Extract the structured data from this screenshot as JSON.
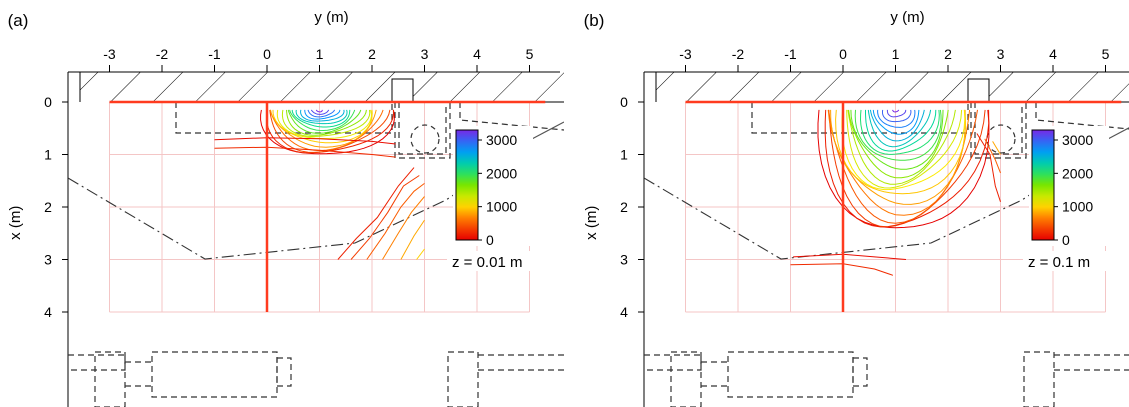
{
  "chart_data": [
    {
      "type": "contour",
      "panel_label": "(a)",
      "xlabel": "y (m)",
      "ylabel": "x (m)",
      "x_ticks": [
        "-3",
        "-2",
        "-1",
        "0",
        "1",
        "2",
        "3",
        "4",
        "5"
      ],
      "x_tick_values": [
        -3,
        -2,
        -1,
        0,
        1,
        2,
        3,
        4,
        5
      ],
      "y_ticks": [
        "0",
        "1",
        "2",
        "3",
        "4"
      ],
      "y_tick_values": [
        0,
        1,
        2,
        3,
        4
      ],
      "xlim": [
        -3.75,
        5.3
      ],
      "ylim": [
        0,
        5.8
      ],
      "grid": true,
      "annotation": "z = 0.01 m",
      "colorbar": {
        "ticks": [
          "0",
          "1000",
          "2000",
          "3000"
        ],
        "values": [
          0,
          1000,
          2000,
          3000
        ],
        "min": 0,
        "max": 3300
      },
      "source": {
        "y_start": 0,
        "y_end": 0,
        "x_start": 0,
        "x_end": 4.0
      },
      "peak": {
        "y": 1.0,
        "x": 0.15,
        "value": 3300
      },
      "contour_count": 18,
      "spread": {
        "ya": 1.05,
        "yb": 1.35,
        "depth": 0.85
      },
      "right_curves": [
        [
          [
            1.35,
            3.0
          ],
          [
            1.7,
            2.6
          ],
          [
            2.1,
            2.2
          ],
          [
            2.5,
            1.6
          ],
          [
            2.8,
            1.25
          ]
        ],
        [
          [
            1.6,
            3.0
          ],
          [
            1.95,
            2.6
          ],
          [
            2.3,
            2.1
          ],
          [
            2.6,
            1.6
          ],
          [
            2.9,
            1.4
          ]
        ],
        [
          [
            1.9,
            3.0
          ],
          [
            2.25,
            2.5
          ],
          [
            2.55,
            2.0
          ],
          [
            2.8,
            1.7
          ],
          [
            3.0,
            1.55
          ]
        ],
        [
          [
            2.2,
            3.0
          ],
          [
            2.5,
            2.5
          ],
          [
            2.75,
            2.1
          ],
          [
            3.0,
            1.8
          ]
        ],
        [
          [
            2.55,
            3.0
          ],
          [
            2.8,
            2.55
          ],
          [
            3.0,
            2.25
          ]
        ],
        [
          [
            2.85,
            3.0
          ],
          [
            3.0,
            2.8
          ]
        ]
      ],
      "left_lines": [
        [
          [
            -1.0,
            0.72
          ],
          [
            0.0,
            0.68
          ],
          [
            1.0,
            0.7
          ],
          [
            2.0,
            0.75
          ],
          [
            2.45,
            0.8
          ]
        ],
        [
          [
            -1.0,
            0.88
          ],
          [
            0.0,
            0.86
          ],
          [
            1.0,
            0.92
          ],
          [
            2.0,
            1.0
          ],
          [
            2.45,
            1.05
          ]
        ]
      ]
    },
    {
      "type": "contour",
      "panel_label": "(b)",
      "xlabel": "y (m)",
      "ylabel": "x (m)",
      "x_ticks": [
        "-3",
        "-2",
        "-1",
        "0",
        "1",
        "2",
        "3",
        "4",
        "5"
      ],
      "x_tick_values": [
        -3,
        -2,
        -1,
        0,
        1,
        2,
        3,
        4,
        5
      ],
      "y_ticks": [
        "0",
        "1",
        "2",
        "3",
        "4"
      ],
      "y_tick_values": [
        0,
        1,
        2,
        3,
        4
      ],
      "xlim": [
        -3.75,
        5.3
      ],
      "ylim": [
        0,
        5.8
      ],
      "grid": true,
      "annotation": "z = 0.1 m",
      "colorbar": {
        "ticks": [
          "0",
          "1000",
          "2000",
          "3000"
        ],
        "values": [
          0,
          1000,
          2000,
          3000
        ],
        "min": 0,
        "max": 3300
      },
      "source": {
        "y_start": 0,
        "y_end": 0,
        "x_start": 0,
        "x_end": 4.0
      },
      "peak": {
        "y": 1.0,
        "x": 0.15,
        "value": 3300
      },
      "contour_count": 22,
      "spread": {
        "ya": 1.4,
        "yb": 1.7,
        "depth": 2.35
      },
      "right_curves": [
        [
          [
            2.55,
            0.6
          ],
          [
            2.8,
            1.0
          ],
          [
            2.9,
            1.6
          ],
          [
            3.0,
            1.9
          ]
        ],
        [
          [
            2.7,
            0.7
          ],
          [
            2.9,
            1.1
          ],
          [
            3.0,
            1.35
          ]
        ],
        [
          [
            2.85,
            0.75
          ],
          [
            3.0,
            1.0
          ]
        ]
      ],
      "left_lines": [
        [
          [
            -0.95,
            2.95
          ],
          [
            0.0,
            2.9
          ],
          [
            0.6,
            2.95
          ],
          [
            1.2,
            3.0
          ]
        ],
        [
          [
            -1.0,
            3.1
          ],
          [
            0.0,
            3.08
          ],
          [
            0.6,
            3.18
          ],
          [
            0.95,
            3.3
          ]
        ]
      ]
    }
  ]
}
